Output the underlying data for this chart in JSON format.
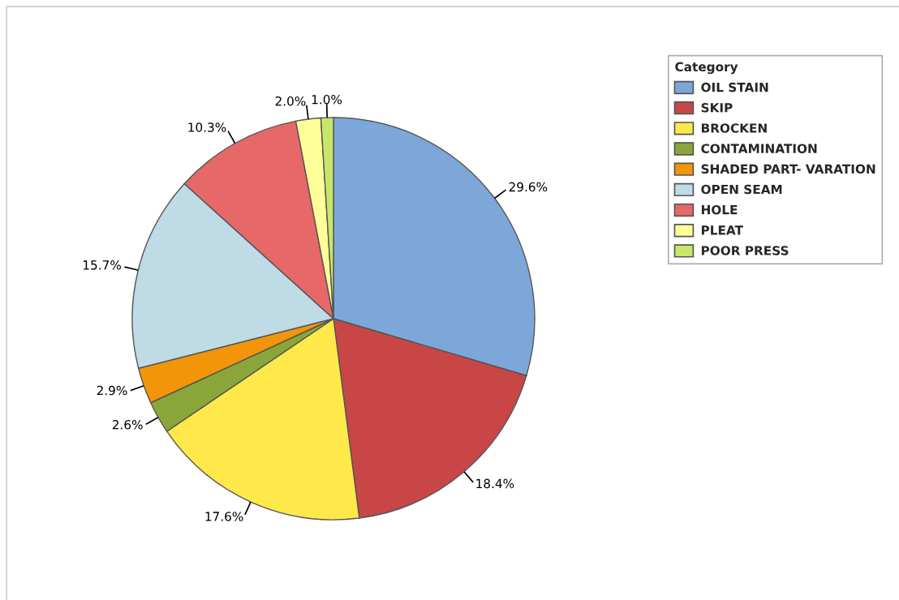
{
  "chart_data": {
    "type": "pie",
    "legend_title": "Category",
    "categories": [
      "OIL STAIN",
      "SKIP",
      "BROCKEN",
      "CONTAMINATION",
      "SHADED PART- VARATION",
      "OPEN SEAM",
      "HOLE",
      "PLEAT",
      "POOR PRESS"
    ],
    "values": [
      29.6,
      18.4,
      17.6,
      2.6,
      2.9,
      15.7,
      10.3,
      2.0,
      1.0
    ],
    "value_labels": [
      "29.6%",
      "18.4%",
      "17.6%",
      "2.6%",
      "2.9%",
      "15.7%",
      "10.3%",
      "2.0%",
      "1.0%"
    ],
    "colors": [
      "#7da7d9",
      "#c84646",
      "#ffe94a",
      "#8aa63a",
      "#f39508",
      "#bedbe6",
      "#e66868",
      "#ffff99",
      "#c8e66a"
    ],
    "legend": "top right"
  }
}
